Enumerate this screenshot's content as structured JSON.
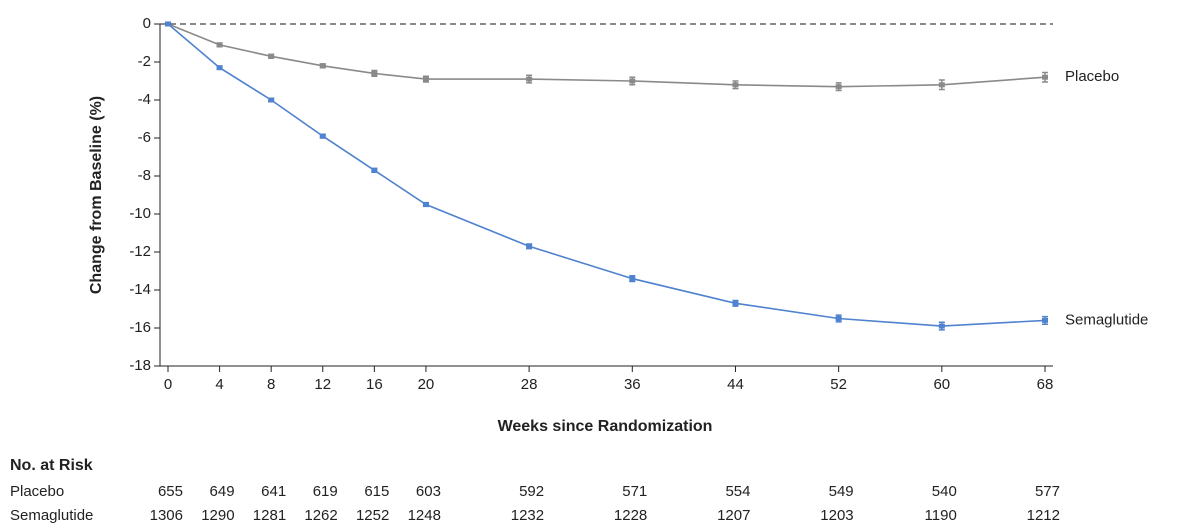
{
  "chart_data": {
    "type": "line",
    "y_label": "Change from Baseline (%)",
    "x_label": "Weeks since Randomization",
    "x": [
      0,
      4,
      8,
      12,
      16,
      20,
      28,
      36,
      44,
      52,
      60,
      68
    ],
    "series": [
      {
        "name": "Placebo",
        "color": "#8a8a8a",
        "values": [
          0,
          -1.1,
          -1.7,
          -2.2,
          -2.6,
          -2.9,
          -2.9,
          -3.0,
          -3.2,
          -3.3,
          -3.2,
          -2.8
        ],
        "errors": [
          0,
          0.1,
          0.1,
          0.1,
          0.15,
          0.15,
          0.2,
          0.2,
          0.2,
          0.2,
          0.25,
          0.25
        ]
      },
      {
        "name": "Semaglutide",
        "color": "#4f82cf",
        "values": [
          0,
          -2.3,
          -4.0,
          -5.9,
          -7.7,
          -9.5,
          -11.7,
          -13.4,
          -14.7,
          -15.5,
          -15.9,
          -15.6
        ],
        "errors": [
          0,
          0.08,
          0.08,
          0.1,
          0.1,
          0.1,
          0.12,
          0.15,
          0.15,
          0.18,
          0.2,
          0.2
        ]
      }
    ],
    "xlim": [
      0,
      68
    ],
    "xticks": [
      0,
      4,
      8,
      12,
      16,
      20,
      28,
      36,
      44,
      52,
      60,
      68
    ],
    "ylim": [
      -18,
      0
    ],
    "yticks": [
      0,
      -2,
      -4,
      -6,
      -8,
      -10,
      -12,
      -14,
      -16,
      -18
    ],
    "reference_line": 0,
    "risk_table": {
      "title": "No. at Risk",
      "rows": [
        {
          "name": "Placebo",
          "values": [
            "655",
            "649",
            "641",
            "619",
            "615",
            "603",
            "592",
            "571",
            "554",
            "549",
            "540",
            "577"
          ]
        },
        {
          "name": "Semaglutide",
          "values": [
            "1306",
            "1290",
            "1281",
            "1262",
            "1252",
            "1248",
            "1232",
            "1228",
            "1207",
            "1203",
            "1190",
            "1212"
          ]
        }
      ]
    }
  }
}
